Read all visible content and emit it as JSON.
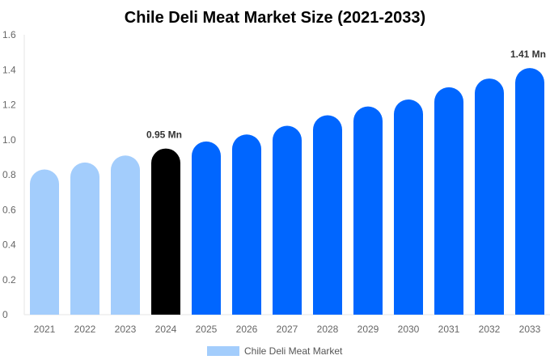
{
  "chart_data": {
    "type": "bar",
    "title": "Chile Deli Meat Market Size (2021-2033)",
    "xlabel": "",
    "ylabel": "",
    "categories": [
      "2021",
      "2022",
      "2023",
      "2024",
      "2025",
      "2026",
      "2027",
      "2028",
      "2029",
      "2030",
      "2031",
      "2032",
      "2033"
    ],
    "series": [
      {
        "name": "Chile Deli Meat Market",
        "values": [
          0.83,
          0.87,
          0.91,
          0.95,
          0.99,
          1.03,
          1.08,
          1.14,
          1.19,
          1.23,
          1.3,
          1.35,
          1.41
        ]
      }
    ],
    "ylim": [
      0,
      1.6
    ],
    "yticks": [
      "0",
      "0.2",
      "0.4",
      "0.6",
      "0.8",
      "1.0",
      "1.2",
      "1.4",
      "1.6"
    ],
    "grid": false,
    "legend_position": "bottom",
    "annotations": [
      {
        "category": "2024",
        "text": "0.95 Mn"
      },
      {
        "category": "2033",
        "text": "1.41 Mn"
      }
    ],
    "colors": {
      "historical": "#a3cdfc",
      "base_year": "#000000",
      "forecast": "#0066ff",
      "legend": "#a3cdfc"
    },
    "bar_color_by_category": [
      "historical",
      "historical",
      "historical",
      "base_year",
      "forecast",
      "forecast",
      "forecast",
      "forecast",
      "forecast",
      "forecast",
      "forecast",
      "forecast",
      "forecast"
    ]
  }
}
